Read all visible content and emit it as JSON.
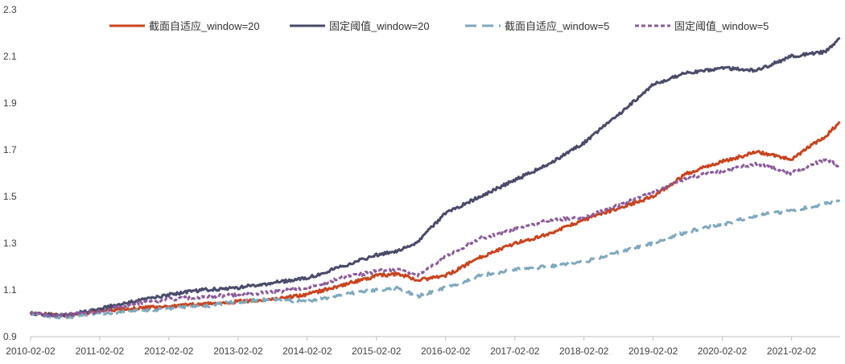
{
  "chart_data": {
    "type": "line",
    "title": "",
    "xlabel": "",
    "ylabel": "",
    "ylim": [
      0.9,
      2.3
    ],
    "y_ticks": [
      "0.9",
      "1.1",
      "1.3",
      "1.5",
      "1.7",
      "1.9",
      "2.1",
      "2.3"
    ],
    "x_ticks": [
      "2010-02-02",
      "2011-02-02",
      "2012-02-02",
      "2013-02-02",
      "2014-02-02",
      "2015-02-02",
      "2016-02-02",
      "2017-02-02",
      "2018-02-02",
      "2019-02-02",
      "2020-02-02",
      "2021-02-02"
    ],
    "grid": false,
    "legend_position": "top",
    "x": [
      "2010-02-02",
      "2010-08-02",
      "2011-02-02",
      "2011-08-02",
      "2012-02-02",
      "2012-08-02",
      "2013-02-02",
      "2013-08-02",
      "2014-02-02",
      "2014-08-02",
      "2015-02-02",
      "2015-06-02",
      "2015-09-02",
      "2016-02-02",
      "2016-08-02",
      "2017-02-02",
      "2017-08-02",
      "2018-02-02",
      "2018-08-02",
      "2019-02-02",
      "2019-08-02",
      "2020-02-02",
      "2020-08-02",
      "2021-02-02",
      "2021-08-02",
      "2021-10-15"
    ],
    "series": [
      {
        "name": "截面自适应_window=20",
        "color": "#c9441f",
        "dash": "solid",
        "values": [
          1.0,
          0.99,
          1.01,
          1.02,
          1.03,
          1.04,
          1.05,
          1.06,
          1.08,
          1.12,
          1.16,
          1.17,
          1.14,
          1.16,
          1.24,
          1.3,
          1.34,
          1.4,
          1.45,
          1.5,
          1.6,
          1.65,
          1.69,
          1.66,
          1.76,
          1.82
        ]
      },
      {
        "name": "固定阈值_window=20",
        "color": "#4a4a6a",
        "dash": "solid",
        "values": [
          1.0,
          0.99,
          1.02,
          1.05,
          1.08,
          1.1,
          1.11,
          1.13,
          1.15,
          1.2,
          1.25,
          1.27,
          1.3,
          1.43,
          1.5,
          1.57,
          1.64,
          1.73,
          1.85,
          1.98,
          2.03,
          2.05,
          2.04,
          2.1,
          2.12,
          2.18
        ]
      },
      {
        "name": "截面自适应_window=5",
        "color": "#7fa8bd",
        "dash": "dashed",
        "values": [
          1.0,
          0.98,
          1.0,
          1.01,
          1.02,
          1.03,
          1.05,
          1.06,
          1.05,
          1.08,
          1.1,
          1.11,
          1.07,
          1.11,
          1.16,
          1.19,
          1.2,
          1.22,
          1.26,
          1.3,
          1.35,
          1.38,
          1.42,
          1.44,
          1.47,
          1.48
        ]
      },
      {
        "name": "固定阈值_window=5",
        "color": "#8a5a9a",
        "dash": "dotted",
        "values": [
          1.0,
          0.99,
          1.01,
          1.04,
          1.06,
          1.07,
          1.08,
          1.09,
          1.11,
          1.15,
          1.18,
          1.19,
          1.16,
          1.24,
          1.32,
          1.36,
          1.4,
          1.41,
          1.46,
          1.52,
          1.58,
          1.61,
          1.64,
          1.6,
          1.66,
          1.63
        ]
      }
    ]
  }
}
